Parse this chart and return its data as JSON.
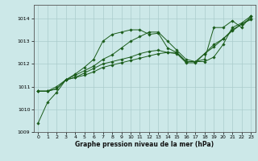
{
  "title": "Graphe pression niveau de la mer (hPa)",
  "bg_color": "#cce8e8",
  "grid_color": "#aacccc",
  "line_color": "#1a5c1a",
  "xlim": [
    -0.5,
    23.5
  ],
  "ylim": [
    1009.0,
    1014.6
  ],
  "yticks": [
    1009,
    1010,
    1011,
    1012,
    1013,
    1014
  ],
  "xticks": [
    0,
    1,
    2,
    3,
    4,
    5,
    6,
    7,
    8,
    9,
    10,
    11,
    12,
    13,
    14,
    15,
    16,
    17,
    18,
    19,
    20,
    21,
    22,
    23
  ],
  "series": [
    [
      1009.4,
      1010.3,
      1010.75,
      1011.3,
      1011.55,
      1011.85,
      1012.2,
      1013.0,
      1013.3,
      1013.4,
      1013.5,
      1013.5,
      1013.3,
      1013.35,
      1012.7,
      1012.5,
      1012.1,
      1012.1,
      1012.2,
      1013.6,
      1013.6,
      1013.9,
      1013.6,
      1014.1
    ],
    [
      1010.8,
      1010.8,
      1010.9,
      1011.3,
      1011.4,
      1011.6,
      1011.8,
      1012.0,
      1012.1,
      1012.2,
      1012.3,
      1012.45,
      1012.55,
      1012.6,
      1012.5,
      1012.5,
      1012.1,
      1012.1,
      1012.45,
      1012.75,
      1013.1,
      1013.5,
      1013.75,
      1014.0
    ],
    [
      1010.8,
      1010.8,
      1011.0,
      1011.3,
      1011.4,
      1011.5,
      1011.65,
      1011.85,
      1011.95,
      1012.05,
      1012.15,
      1012.25,
      1012.35,
      1012.45,
      1012.5,
      1012.45,
      1012.05,
      1012.05,
      1012.45,
      1012.85,
      1013.1,
      1013.45,
      1013.75,
      1013.95
    ],
    [
      1010.8,
      1010.8,
      1010.9,
      1011.3,
      1011.5,
      1011.7,
      1011.9,
      1012.2,
      1012.4,
      1012.7,
      1013.0,
      1013.2,
      1013.4,
      1013.4,
      1013.0,
      1012.6,
      1012.2,
      1012.1,
      1012.1,
      1012.3,
      1012.85,
      1013.6,
      1013.8,
      1014.1
    ]
  ]
}
